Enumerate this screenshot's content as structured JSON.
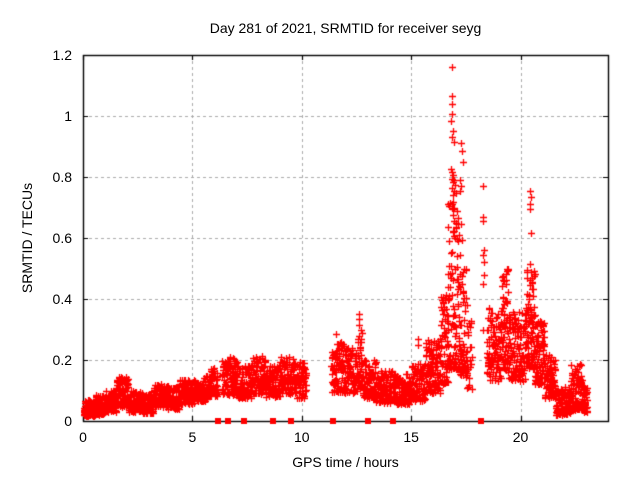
{
  "chart_data": {
    "type": "scatter",
    "title": "Day 281 of 2021, SRMTID for receiver seyg",
    "xlabel": "GPS time / hours",
    "ylabel": "SRMTID / TECUs",
    "xlim": [
      0,
      24
    ],
    "ylim": [
      0,
      1.2
    ],
    "grid": "dashed",
    "legend": "none",
    "marker": "plus",
    "marker_color": "#ff0000",
    "grid_color": "#ababab",
    "axis_color": "#000000",
    "background_color": "#ffffff",
    "xticks": [
      {
        "v": 0,
        "label": "0"
      },
      {
        "v": 5,
        "label": "5"
      },
      {
        "v": 10,
        "label": "10"
      },
      {
        "v": 15,
        "label": "15"
      },
      {
        "v": 20,
        "label": "20"
      }
    ],
    "yticks": [
      {
        "v": 0,
        "label": "0"
      },
      {
        "v": 0.2,
        "label": "0.2"
      },
      {
        "v": 0.4,
        "label": "0.4"
      },
      {
        "v": 0.6,
        "label": "0.6"
      },
      {
        "v": 0.8,
        "label": "0.8"
      },
      {
        "v": 1,
        "label": "1"
      },
      {
        "v": 1.2,
        "label": "1.2"
      }
    ],
    "density_bands": [
      [
        0.02,
        0.5,
        80,
        0.015,
        0.075
      ],
      [
        0.5,
        1.0,
        85,
        0.02,
        0.085
      ],
      [
        1.0,
        1.5,
        85,
        0.03,
        0.1
      ],
      [
        1.5,
        2.1,
        100,
        0.045,
        0.145
      ],
      [
        2.1,
        2.7,
        90,
        0.03,
        0.1
      ],
      [
        2.7,
        3.2,
        80,
        0.025,
        0.09
      ],
      [
        3.2,
        3.8,
        90,
        0.045,
        0.125
      ],
      [
        3.8,
        4.4,
        90,
        0.04,
        0.115
      ],
      [
        4.4,
        5.1,
        100,
        0.055,
        0.135
      ],
      [
        5.1,
        5.7,
        90,
        0.065,
        0.15
      ],
      [
        5.7,
        6.15,
        70,
        0.08,
        0.175
      ],
      [
        6.35,
        7.05,
        100,
        0.085,
        0.21
      ],
      [
        7.05,
        7.7,
        95,
        0.075,
        0.185
      ],
      [
        7.7,
        8.35,
        95,
        0.09,
        0.215
      ],
      [
        8.35,
        9.0,
        95,
        0.08,
        0.185
      ],
      [
        9.0,
        9.65,
        95,
        0.09,
        0.215
      ],
      [
        9.65,
        10.2,
        70,
        0.075,
        0.195
      ],
      [
        11.35,
        11.95,
        100,
        0.095,
        0.26
      ],
      [
        11.95,
        12.55,
        90,
        0.09,
        0.24
      ],
      [
        12.55,
        12.75,
        30,
        0.11,
        0.3
      ],
      [
        12.75,
        13.4,
        90,
        0.075,
        0.2
      ],
      [
        13.4,
        14.2,
        105,
        0.06,
        0.165
      ],
      [
        14.2,
        15.0,
        115,
        0.055,
        0.155
      ],
      [
        15.0,
        15.65,
        95,
        0.065,
        0.19
      ],
      [
        15.65,
        16.35,
        115,
        0.09,
        0.27
      ],
      [
        16.35,
        16.7,
        60,
        0.12,
        0.42
      ],
      [
        16.65,
        17.15,
        95,
        0.17,
        0.72,
        1.9
      ],
      [
        17.15,
        17.55,
        70,
        0.15,
        0.58,
        1.8
      ],
      [
        17.5,
        17.78,
        25,
        0.1,
        0.33
      ],
      [
        18.45,
        19.15,
        110,
        0.13,
        0.38
      ],
      [
        19.15,
        19.45,
        65,
        0.16,
        0.5
      ],
      [
        19.45,
        20.25,
        115,
        0.13,
        0.36
      ],
      [
        20.25,
        20.65,
        85,
        0.17,
        0.5
      ],
      [
        20.65,
        21.1,
        85,
        0.12,
        0.33
      ],
      [
        21.1,
        21.6,
        85,
        0.075,
        0.22
      ],
      [
        21.6,
        22.3,
        115,
        0.02,
        0.115
      ],
      [
        22.3,
        22.8,
        85,
        0.035,
        0.19
      ],
      [
        22.8,
        23.05,
        50,
        0.03,
        0.12
      ]
    ],
    "outlier_points": [
      [
        16.85,
        1.16
      ],
      [
        16.86,
        1.065
      ],
      [
        16.85,
        1.04
      ],
      [
        16.88,
        1.005
      ],
      [
        16.84,
        0.985
      ],
      [
        16.92,
        0.95
      ],
      [
        16.88,
        0.93
      ],
      [
        16.95,
        0.915
      ],
      [
        17.3,
        0.91
      ],
      [
        17.32,
        0.885
      ],
      [
        17.35,
        0.85
      ],
      [
        16.82,
        0.825
      ],
      [
        16.88,
        0.815
      ],
      [
        16.93,
        0.805
      ],
      [
        16.85,
        0.795
      ],
      [
        16.98,
        0.79
      ],
      [
        16.9,
        0.782
      ],
      [
        17.0,
        0.775
      ],
      [
        16.86,
        0.765
      ],
      [
        16.95,
        0.755
      ],
      [
        17.05,
        0.748
      ],
      [
        16.9,
        0.74
      ],
      [
        17.25,
        0.79
      ],
      [
        17.28,
        0.77
      ],
      [
        17.22,
        0.755
      ],
      [
        16.88,
        0.71
      ],
      [
        16.96,
        0.7
      ],
      [
        17.08,
        0.69
      ],
      [
        16.92,
        0.675
      ],
      [
        17.15,
        0.665
      ],
      [
        16.98,
        0.655
      ],
      [
        17.3,
        0.645
      ],
      [
        17.05,
        0.635
      ],
      [
        16.9,
        0.62
      ],
      [
        17.18,
        0.61
      ],
      [
        17.0,
        0.6
      ],
      [
        17.32,
        0.595
      ],
      [
        18.28,
        0.77
      ],
      [
        18.3,
        0.67
      ],
      [
        18.29,
        0.655
      ],
      [
        18.31,
        0.56
      ],
      [
        18.3,
        0.545
      ],
      [
        18.33,
        0.52
      ],
      [
        18.32,
        0.48
      ],
      [
        18.28,
        0.45
      ],
      [
        18.3,
        0.3
      ],
      [
        20.45,
        0.755
      ],
      [
        20.47,
        0.735
      ],
      [
        20.44,
        0.71
      ],
      [
        20.43,
        0.695
      ],
      [
        20.5,
        0.615
      ],
      [
        20.42,
        0.515
      ],
      [
        20.48,
        0.49
      ],
      [
        12.62,
        0.352
      ],
      [
        12.6,
        0.335
      ],
      [
        12.63,
        0.315
      ],
      [
        15.3,
        0.27
      ],
      [
        15.33,
        0.25
      ],
      [
        15.92,
        0.26
      ],
      [
        11.55,
        0.285
      ]
    ],
    "axis_gap_squares_x": [
      6.16,
      6.61,
      7.37,
      8.67,
      9.51,
      11.44,
      13.04,
      14.16,
      18.19
    ]
  }
}
